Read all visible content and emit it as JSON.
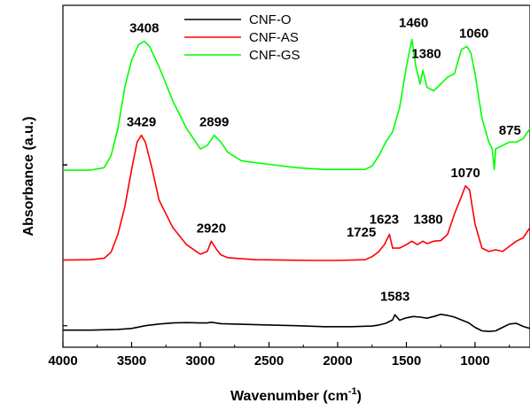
{
  "chart_data": {
    "type": "line",
    "xlabel": "Wavenumber (cm",
    "xlabel_sup": "-1",
    "xlabel_tail": ")",
    "ylabel": "Absorbance (a.u.)",
    "xlim": [
      4000,
      600
    ],
    "x_reversed": true,
    "ylim": [
      0,
      1
    ],
    "x_ticks": [
      4000,
      3500,
      3000,
      2500,
      2000,
      1500,
      1000
    ],
    "grid": false,
    "legend_position": "top-center",
    "series": [
      {
        "name": "CNF-O",
        "color": "#000000",
        "points": [
          [
            4000,
            0.05
          ],
          [
            3800,
            0.05
          ],
          [
            3600,
            0.052
          ],
          [
            3500,
            0.055
          ],
          [
            3400,
            0.063
          ],
          [
            3300,
            0.068
          ],
          [
            3200,
            0.071
          ],
          [
            3100,
            0.072
          ],
          [
            3000,
            0.071
          ],
          [
            2950,
            0.071
          ],
          [
            2920,
            0.073
          ],
          [
            2850,
            0.069
          ],
          [
            2700,
            0.067
          ],
          [
            2500,
            0.065
          ],
          [
            2300,
            0.063
          ],
          [
            2100,
            0.06
          ],
          [
            1900,
            0.06
          ],
          [
            1750,
            0.062
          ],
          [
            1700,
            0.065
          ],
          [
            1650,
            0.07
          ],
          [
            1600,
            0.08
          ],
          [
            1583,
            0.095
          ],
          [
            1550,
            0.079
          ],
          [
            1500,
            0.086
          ],
          [
            1450,
            0.09
          ],
          [
            1400,
            0.088
          ],
          [
            1350,
            0.085
          ],
          [
            1300,
            0.09
          ],
          [
            1250,
            0.096
          ],
          [
            1200,
            0.093
          ],
          [
            1150,
            0.088
          ],
          [
            1100,
            0.08
          ],
          [
            1050,
            0.072
          ],
          [
            1000,
            0.058
          ],
          [
            950,
            0.048
          ],
          [
            900,
            0.046
          ],
          [
            850,
            0.048
          ],
          [
            800,
            0.058
          ],
          [
            750,
            0.068
          ],
          [
            700,
            0.07
          ],
          [
            650,
            0.061
          ],
          [
            600,
            0.055
          ]
        ]
      },
      {
        "name": "CNF-AS",
        "color": "#ff0000",
        "points": [
          [
            4000,
            0.255
          ],
          [
            3800,
            0.256
          ],
          [
            3700,
            0.26
          ],
          [
            3650,
            0.278
          ],
          [
            3600,
            0.33
          ],
          [
            3550,
            0.41
          ],
          [
            3500,
            0.52
          ],
          [
            3460,
            0.6
          ],
          [
            3429,
            0.62
          ],
          [
            3400,
            0.6
          ],
          [
            3350,
            0.52
          ],
          [
            3300,
            0.43
          ],
          [
            3200,
            0.35
          ],
          [
            3100,
            0.3
          ],
          [
            3000,
            0.272
          ],
          [
            2950,
            0.28
          ],
          [
            2920,
            0.31
          ],
          [
            2880,
            0.285
          ],
          [
            2850,
            0.27
          ],
          [
            2800,
            0.262
          ],
          [
            2600,
            0.256
          ],
          [
            2400,
            0.255
          ],
          [
            2200,
            0.254
          ],
          [
            2000,
            0.254
          ],
          [
            1800,
            0.256
          ],
          [
            1750,
            0.265
          ],
          [
            1725,
            0.272
          ],
          [
            1700,
            0.28
          ],
          [
            1660,
            0.3
          ],
          [
            1623,
            0.33
          ],
          [
            1600,
            0.29
          ],
          [
            1550,
            0.29
          ],
          [
            1500,
            0.3
          ],
          [
            1460,
            0.31
          ],
          [
            1420,
            0.3
          ],
          [
            1380,
            0.31
          ],
          [
            1350,
            0.303
          ],
          [
            1300,
            0.31
          ],
          [
            1250,
            0.312
          ],
          [
            1200,
            0.33
          ],
          [
            1150,
            0.39
          ],
          [
            1100,
            0.44
          ],
          [
            1070,
            0.472
          ],
          [
            1040,
            0.46
          ],
          [
            1000,
            0.36
          ],
          [
            950,
            0.29
          ],
          [
            900,
            0.28
          ],
          [
            850,
            0.285
          ],
          [
            800,
            0.28
          ],
          [
            750,
            0.295
          ],
          [
            700,
            0.31
          ],
          [
            650,
            0.32
          ],
          [
            600,
            0.35
          ]
        ]
      },
      {
        "name": "CNF-GS",
        "color": "#00ff00",
        "points": [
          [
            4000,
            0.518
          ],
          [
            3800,
            0.518
          ],
          [
            3700,
            0.525
          ],
          [
            3650,
            0.56
          ],
          [
            3600,
            0.64
          ],
          [
            3550,
            0.76
          ],
          [
            3500,
            0.84
          ],
          [
            3450,
            0.885
          ],
          [
            3408,
            0.895
          ],
          [
            3370,
            0.88
          ],
          [
            3300,
            0.82
          ],
          [
            3200,
            0.72
          ],
          [
            3100,
            0.64
          ],
          [
            3000,
            0.58
          ],
          [
            2950,
            0.59
          ],
          [
            2899,
            0.62
          ],
          [
            2850,
            0.6
          ],
          [
            2800,
            0.57
          ],
          [
            2700,
            0.545
          ],
          [
            2500,
            0.535
          ],
          [
            2300,
            0.525
          ],
          [
            2100,
            0.52
          ],
          [
            2000,
            0.52
          ],
          [
            1900,
            0.52
          ],
          [
            1800,
            0.52
          ],
          [
            1750,
            0.53
          ],
          [
            1700,
            0.56
          ],
          [
            1650,
            0.6
          ],
          [
            1600,
            0.63
          ],
          [
            1550,
            0.7
          ],
          [
            1500,
            0.82
          ],
          [
            1460,
            0.9
          ],
          [
            1430,
            0.82
          ],
          [
            1400,
            0.77
          ],
          [
            1380,
            0.81
          ],
          [
            1350,
            0.76
          ],
          [
            1300,
            0.75
          ],
          [
            1250,
            0.77
          ],
          [
            1200,
            0.79
          ],
          [
            1150,
            0.8
          ],
          [
            1100,
            0.87
          ],
          [
            1060,
            0.88
          ],
          [
            1030,
            0.86
          ],
          [
            1000,
            0.8
          ],
          [
            950,
            0.67
          ],
          [
            900,
            0.6
          ],
          [
            875,
            0.58
          ],
          [
            860,
            0.52
          ],
          [
            850,
            0.58
          ],
          [
            800,
            0.59
          ],
          [
            750,
            0.6
          ],
          [
            700,
            0.6
          ],
          [
            650,
            0.61
          ],
          [
            600,
            0.64
          ]
        ]
      }
    ],
    "annotations": [
      {
        "text": "3408",
        "x": 3408,
        "y": 0.895,
        "series": "CNF-GS"
      },
      {
        "text": "2899",
        "x": 2899,
        "y": 0.62,
        "series": "CNF-GS"
      },
      {
        "text": "1460",
        "x": 1460,
        "y": 0.9,
        "series": "CNF-GS"
      },
      {
        "text": "1380",
        "x": 1380,
        "y": 0.81,
        "series": "CNF-GS"
      },
      {
        "text": "1060",
        "x": 1060,
        "y": 0.88,
        "series": "CNF-GS"
      },
      {
        "text": "875",
        "x": 875,
        "y": 0.58,
        "series": "CNF-GS"
      },
      {
        "text": "3429",
        "x": 3429,
        "y": 0.62,
        "series": "CNF-AS"
      },
      {
        "text": "2920",
        "x": 2920,
        "y": 0.31,
        "series": "CNF-AS"
      },
      {
        "text": "1725",
        "x": 1725,
        "y": 0.272,
        "series": "CNF-AS"
      },
      {
        "text": "1623",
        "x": 1623,
        "y": 0.33,
        "series": "CNF-AS"
      },
      {
        "text": "1380",
        "x": 1380,
        "y": 0.31,
        "series": "CNF-AS"
      },
      {
        "text": "1070",
        "x": 1070,
        "y": 0.472,
        "series": "CNF-AS"
      },
      {
        "text": "1583",
        "x": 1583,
        "y": 0.095,
        "series": "CNF-O"
      }
    ]
  }
}
